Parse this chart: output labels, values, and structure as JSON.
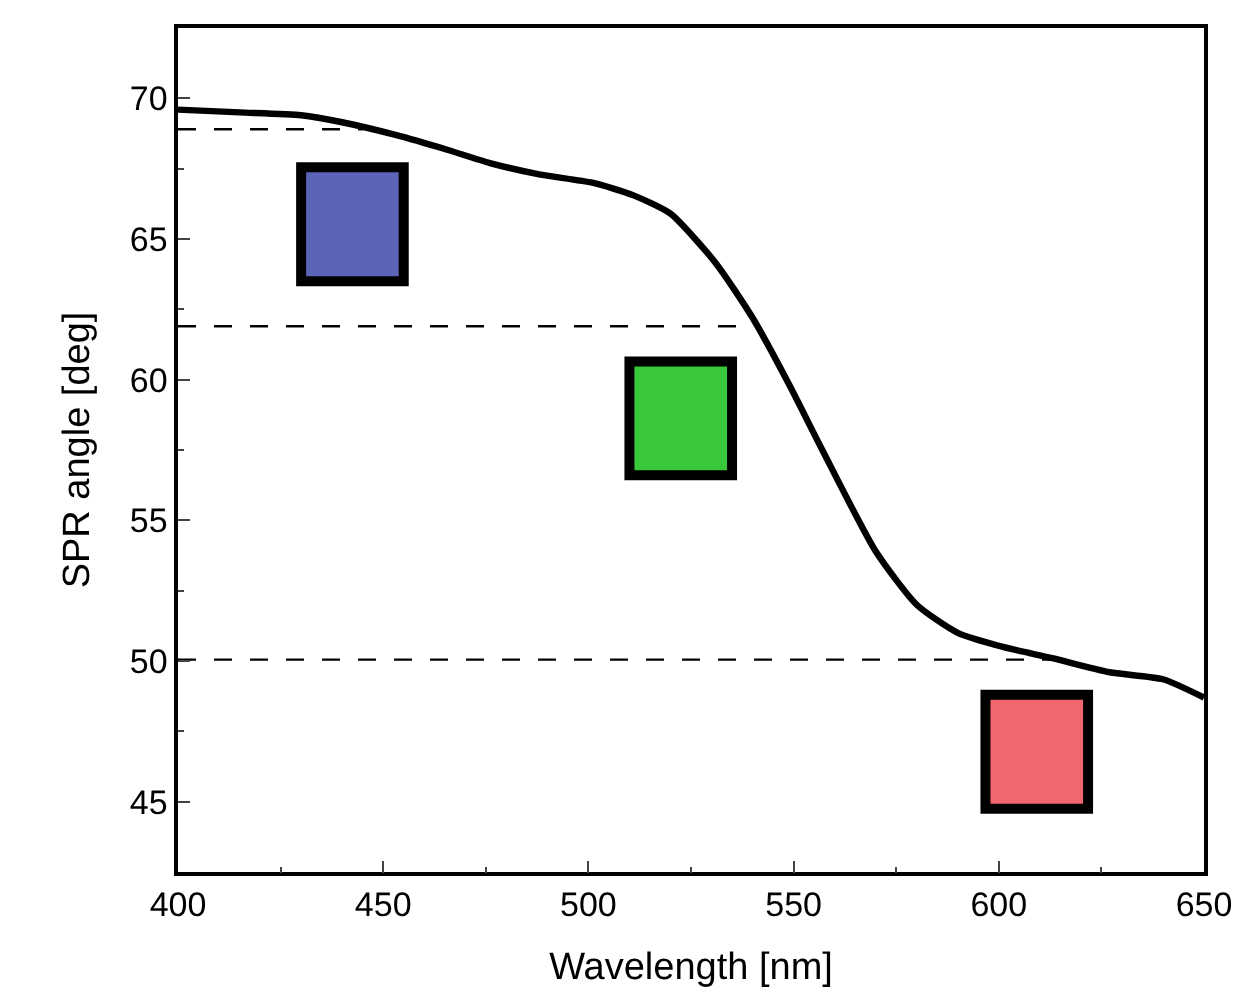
{
  "chart_data": {
    "type": "line",
    "xlabel": "Wavelength [nm]",
    "ylabel": "SPR angle [deg]",
    "xlim": [
      400,
      650
    ],
    "xticks": [
      400,
      450,
      500,
      550,
      600,
      650
    ],
    "ylim": [
      42.5,
      72.5
    ],
    "yticks": [
      45,
      50,
      55,
      60,
      65,
      70
    ],
    "marker": "none",
    "series": [
      {
        "color": "#000000",
        "line_style": "solid",
        "x": [
          400,
          415,
          430,
          440,
          453,
          465,
          476,
          488,
          501,
          511,
          520,
          531,
          540,
          549,
          557,
          570,
          580,
          590,
          601,
          613,
          627,
          640,
          650
        ],
        "values": [
          69.6,
          69.5,
          69.4,
          69.15,
          68.7,
          68.2,
          67.7,
          67.3,
          67.0,
          66.55,
          65.9,
          64.15,
          62.2,
          59.8,
          57.5,
          53.9,
          52.0,
          51.0,
          50.5,
          50.1,
          49.6,
          49.35,
          48.7
        ]
      },
      {
        "color": "#000000",
        "line_style": "dashed",
        "x": [
          400,
          445
        ],
        "values": [
          68.9,
          68.9
        ]
      },
      {
        "color": "#000000",
        "line_style": "dashed",
        "x": [
          400,
          540
        ],
        "values": [
          61.9,
          61.9
        ]
      },
      {
        "color": "#000000",
        "line_style": "dashed",
        "x": [
          400,
          615
        ],
        "values": [
          50.05,
          50.05
        ]
      }
    ]
  }
}
